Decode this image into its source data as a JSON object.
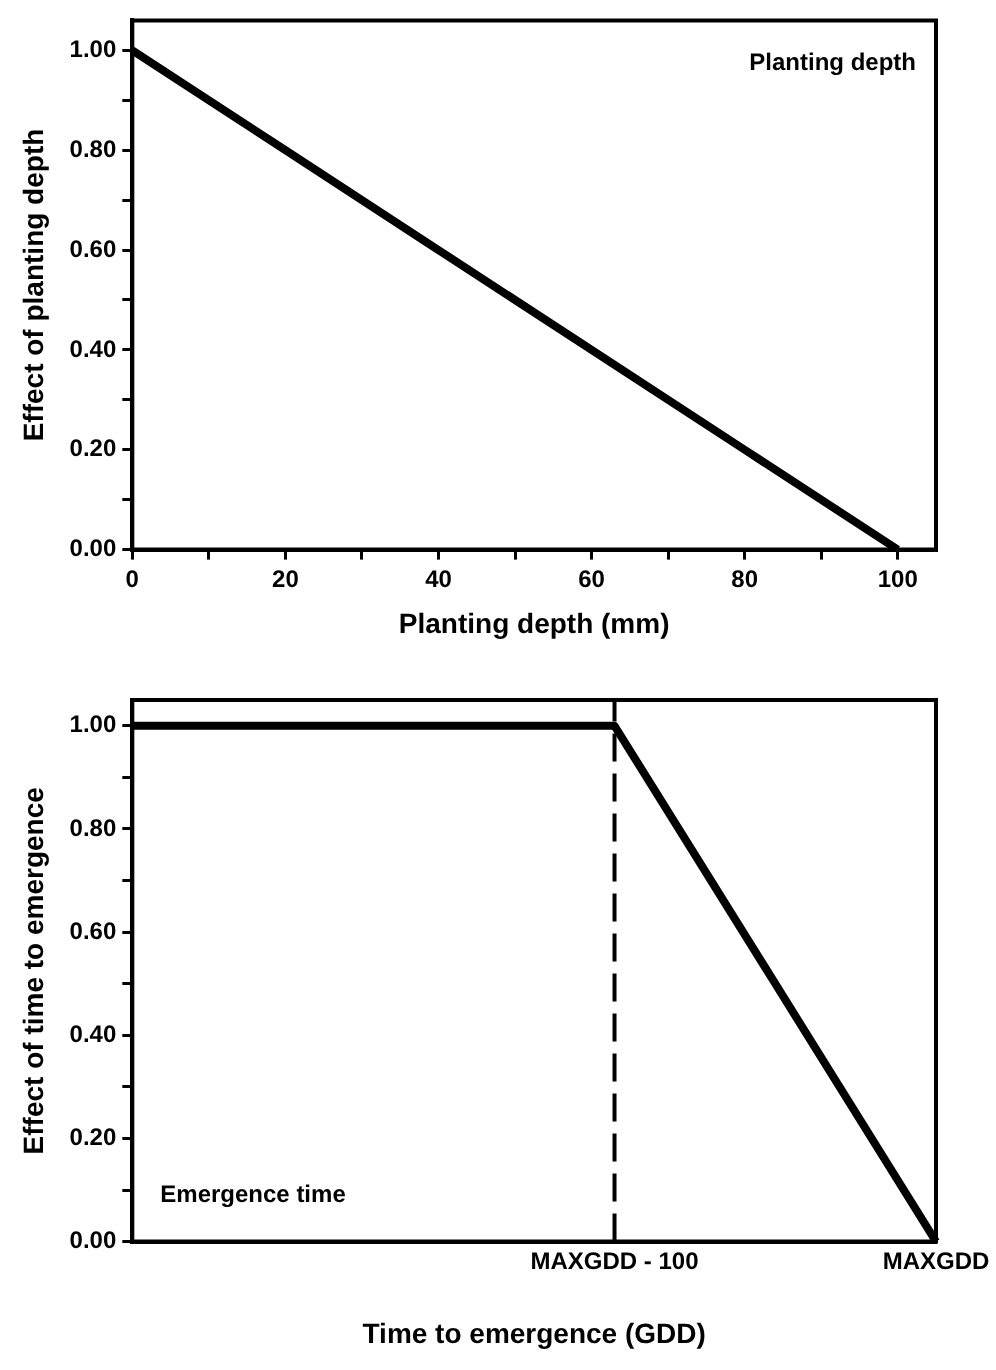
{
  "chart_data": [
    {
      "type": "line",
      "xlabel": "Planting depth (mm)",
      "ylabel": "Effect of planting depth",
      "annotations": [
        "Planting depth"
      ],
      "x": [
        0,
        20,
        40,
        60,
        80,
        100
      ],
      "series": [
        {
          "color": "#000000",
          "values": [
            1.0,
            0.8,
            0.6,
            0.4,
            0.2,
            0.0
          ]
        }
      ],
      "xlim": [
        0,
        105
      ],
      "xticks": [
        0,
        {
          "value": 10,
          "label": null
        },
        20,
        {
          "value": 30,
          "label": null
        },
        40,
        {
          "value": 50,
          "label": null
        },
        60,
        {
          "value": 70,
          "label": null
        },
        80,
        {
          "value": 90,
          "label": null
        },
        100
      ],
      "ylim": [
        0,
        1.06
      ],
      "yticks": [
        {
          "value": 0,
          "label": "0.00"
        },
        {
          "value": 0.1,
          "label": null
        },
        {
          "value": 0.2,
          "label": "0.20"
        },
        {
          "value": 0.3,
          "label": null
        },
        {
          "value": 0.4,
          "label": "0.40"
        },
        {
          "value": 0.5,
          "label": null
        },
        {
          "value": 0.6,
          "label": "0.60"
        },
        {
          "value": 0.7,
          "label": null
        },
        {
          "value": 0.8,
          "label": "0.80"
        },
        {
          "value": 0.9,
          "label": null
        },
        {
          "value": 1,
          "label": "1.00"
        }
      ],
      "grid": false,
      "legend": false,
      "marker": "none",
      "line_style": "solid"
    },
    {
      "type": "line",
      "xlabel": "Time to emergence (GDD)",
      "ylabel": "Effect of time to emergence",
      "annotations": [
        "Emergence time"
      ],
      "categories": [
        null,
        null,
        null,
        "MAXGDD - 100",
        null,
        "MAXGDD"
      ],
      "series": [
        {
          "color": "#000000",
          "values": [
            1.0,
            1.0,
            1.0,
            1.0,
            0.5,
            0.0
          ]
        }
      ],
      "ref_lines": [
        {
          "axis": "x",
          "value": "MAXGDD - 100",
          "color": "#000000",
          "line_style": "dashed"
        }
      ],
      "ylim": [
        0,
        1.05
      ],
      "yticks": [
        {
          "value": 0,
          "label": "0.00"
        },
        {
          "value": 0.1,
          "label": null
        },
        {
          "value": 0.2,
          "label": "0.20"
        },
        {
          "value": 0.3,
          "label": null
        },
        {
          "value": 0.4,
          "label": "0.40"
        },
        {
          "value": 0.5,
          "label": null
        },
        {
          "value": 0.6,
          "label": "0.60"
        },
        {
          "value": 0.7,
          "label": null
        },
        {
          "value": 0.8,
          "label": "0.80"
        },
        {
          "value": 0.9,
          "label": null
        },
        {
          "value": 1,
          "label": "1.00"
        }
      ],
      "grid": false,
      "legend": false,
      "marker": "none",
      "line_style": "solid"
    }
  ]
}
